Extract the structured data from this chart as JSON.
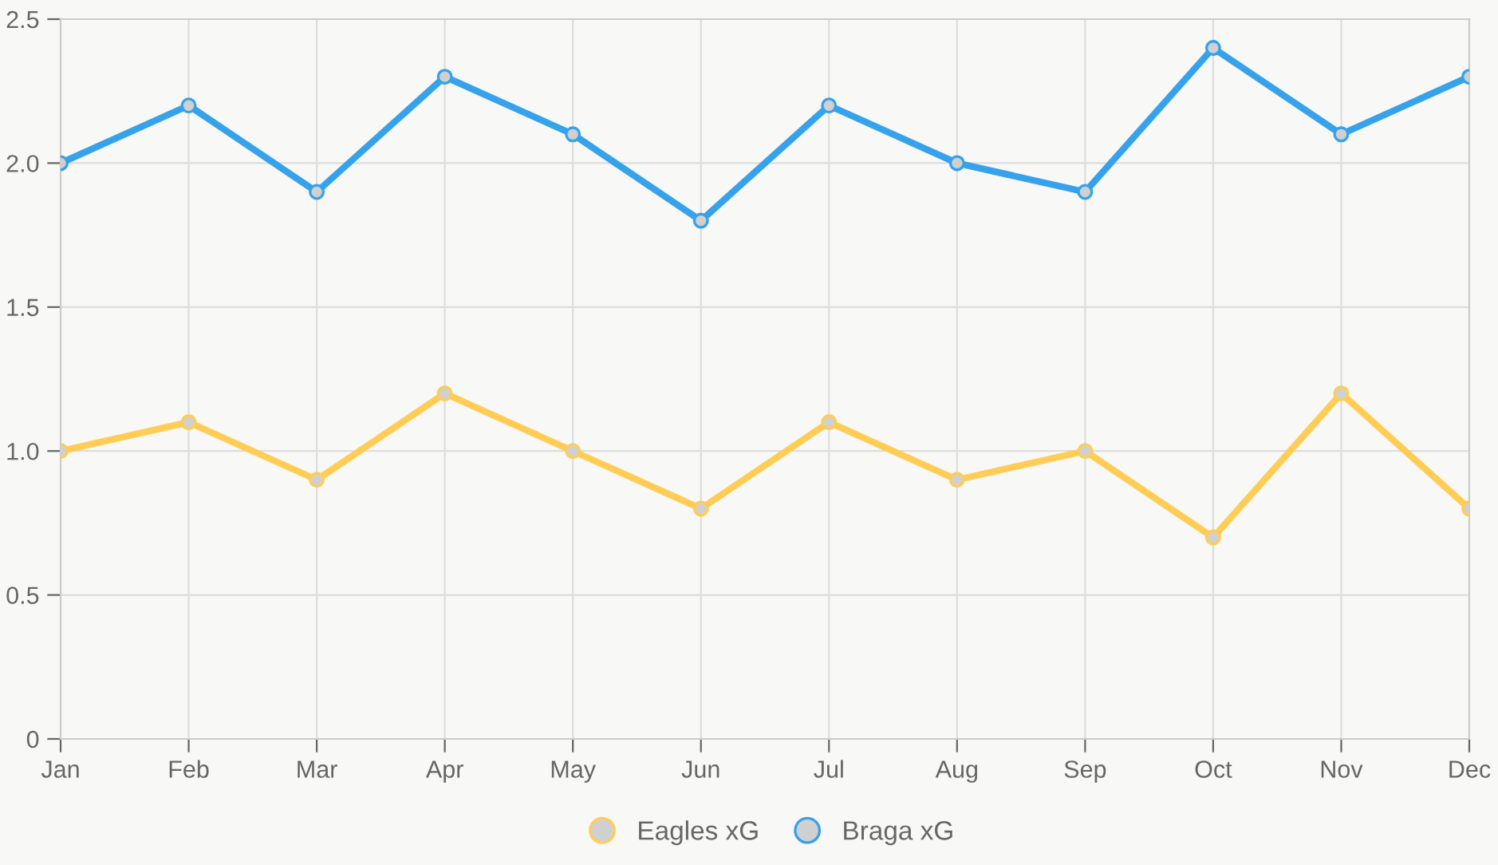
{
  "chart_data": {
    "type": "line",
    "categories": [
      "Jan",
      "Feb",
      "Mar",
      "Apr",
      "May",
      "Jun",
      "Jul",
      "Aug",
      "Sep",
      "Oct",
      "Nov",
      "Dec"
    ],
    "series": [
      {
        "name": "Eagles xG",
        "color": "#ffcd56",
        "values": [
          1.0,
          1.1,
          0.9,
          1.2,
          1.0,
          0.8,
          1.1,
          0.9,
          1.0,
          0.7,
          1.2,
          0.8
        ]
      },
      {
        "name": "Braga xG",
        "color": "#36a2eb",
        "values": [
          2.0,
          2.2,
          1.9,
          2.3,
          2.1,
          1.8,
          2.2,
          2.0,
          1.9,
          2.4,
          2.1,
          2.3
        ]
      }
    ],
    "ylim": [
      0,
      2.5
    ],
    "yticks": [
      0,
      {
        "value": 0.5,
        "label": "0.5"
      },
      {
        "value": 1,
        "label": "1.0"
      },
      {
        "value": 1.5,
        "label": "1.5"
      },
      {
        "value": 2,
        "label": "2.0"
      },
      {
        "value": 2.5,
        "label": "2.5"
      }
    ],
    "grid": true,
    "legend": "bottom",
    "marker": "circle",
    "line_style": "solid"
  }
}
